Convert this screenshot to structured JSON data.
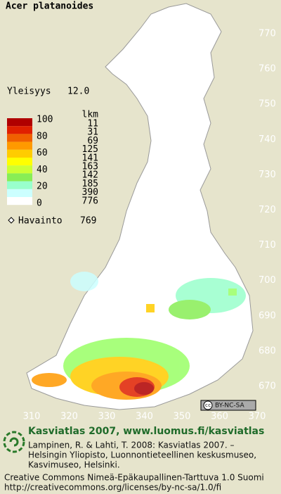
{
  "header": {
    "title": "Acer platanoides"
  },
  "frequency": {
    "label": "Yleisyys",
    "value": "12.0"
  },
  "legend": {
    "scale_labels": [
      "100",
      "80",
      "60",
      "40",
      "20",
      "0"
    ],
    "count_header": "lkm",
    "counts": [
      "11",
      "31",
      "69",
      "125",
      "141",
      "163",
      "142",
      "185",
      "390",
      "776"
    ],
    "observations": {
      "label": "Havainto",
      "value": "769"
    }
  },
  "grid": {
    "northing_labels": [
      "770",
      "760",
      "750",
      "740",
      "730",
      "720",
      "710",
      "700",
      "690",
      "680",
      "670"
    ],
    "easting_labels": [
      "310",
      "320",
      "330",
      "340",
      "350",
      "360",
      "370"
    ]
  },
  "footer": {
    "badge": "BY-NC-SA",
    "title": "Kasviatlas 2007, www.luomus.fi/kasviatlas",
    "citation": [
      "Lampinen, R. & Lahti, T. 2008: Kasviatlas 2007. –",
      "Helsingin Yliopisto, Luonnontieteellinen keskusmuseo,",
      "Kasvimuseo, Helsinki."
    ],
    "license": [
      "Creative Commons Nimeä-Epäkaupallinen-Tarttuva 1.0 Suomi",
      "http://creativecommons.org/licenses/by-nc-sa/1.0/fi"
    ]
  }
}
